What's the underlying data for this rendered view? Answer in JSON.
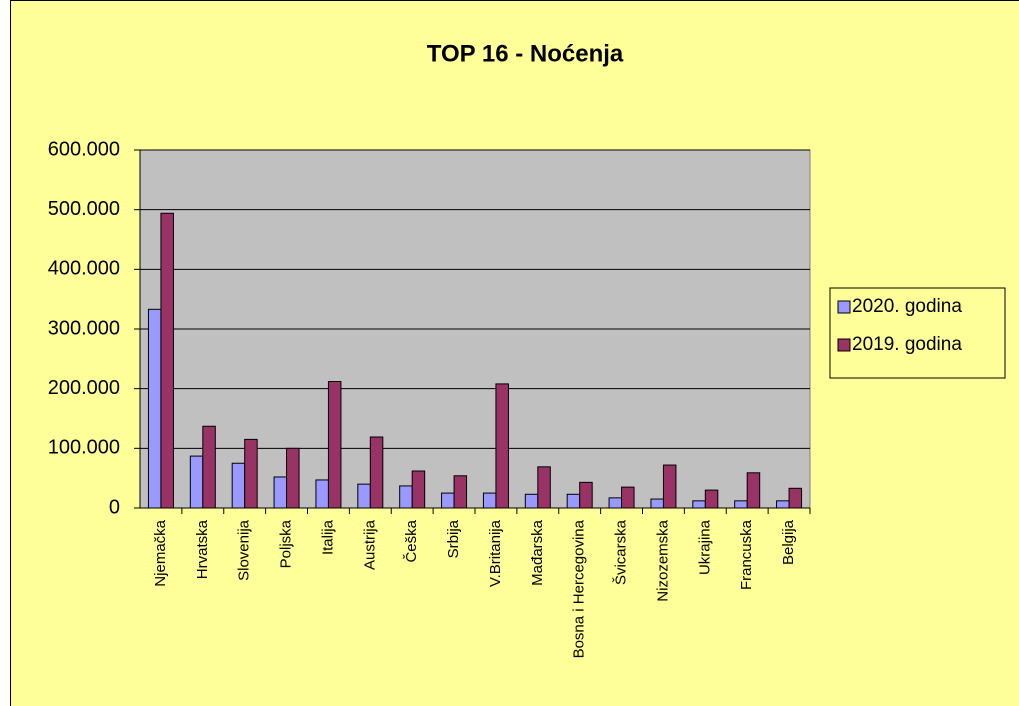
{
  "chart_data": {
    "type": "bar",
    "title": "TOP 16 - Noćenja",
    "categories": [
      "Njemačka",
      "Hrvatska",
      "Slovenija",
      "Poljska",
      "Italija",
      "Austrija",
      "Češka",
      "Srbija",
      "V.Britanija",
      "Mađarska",
      "Bosna i Hercegovina",
      "Švicarska",
      "Nizozemska",
      "Ukrajina",
      "Francuska",
      "Belgija"
    ],
    "series": [
      {
        "name": "2020. godina",
        "color": "#9999ff",
        "values": [
          333000,
          87000,
          75000,
          52000,
          47000,
          40000,
          37000,
          25000,
          25000,
          23000,
          23000,
          17000,
          15000,
          12000,
          12000,
          12000
        ]
      },
      {
        "name": "2019. godina",
        "color": "#993366",
        "values": [
          494000,
          137000,
          115000,
          100000,
          212000,
          119000,
          62000,
          54000,
          208000,
          69000,
          43000,
          35000,
          72000,
          30000,
          59000,
          33000
        ]
      }
    ],
    "ylim": [
      0,
      600000
    ],
    "yticks": [
      0,
      {
        "value": 100000,
        "label": "100.000"
      },
      {
        "value": 200000,
        "label": "200.000"
      },
      {
        "value": 300000,
        "label": "300.000"
      },
      {
        "value": 400000,
        "label": "400.000"
      },
      {
        "value": 500000,
        "label": "500.000"
      },
      {
        "value": 600000,
        "label": "600.000"
      }
    ],
    "grid": true,
    "legend": "right"
  }
}
